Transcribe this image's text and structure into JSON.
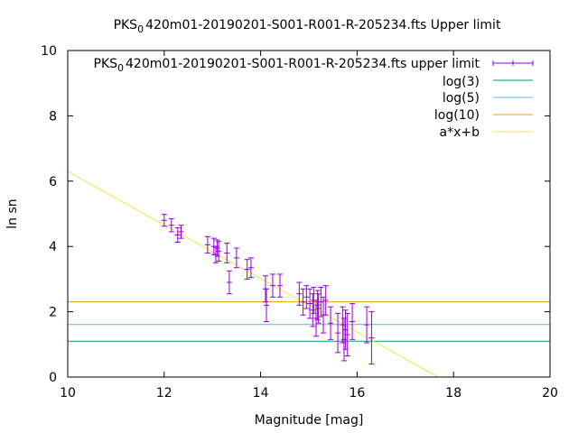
{
  "chart_data": {
    "type": "scatter",
    "title_main": "PKS",
    "title_sub": "0",
    "title_rest": "420m01-20190201-S001-R001-R-205234.fts Upper limit",
    "xlabel": "Magnitude [mag]",
    "ylabel": "ln sn",
    "xlim": [
      10,
      20
    ],
    "ylim": [
      0,
      10
    ],
    "xticks": [
      "10",
      "12",
      "14",
      "16",
      "18",
      "20"
    ],
    "yticks": [
      "0",
      "2",
      "4",
      "6",
      "8",
      "10"
    ],
    "grid": false,
    "legend_position": "top-right",
    "legend": [
      {
        "label_main": "PKS",
        "label_sub": "0",
        "label_rest": "420m01-20190201-S001-R001-R-205234.fts upper limit",
        "color": "#9400d3",
        "style": "errorbar"
      },
      {
        "label": "log(3)",
        "color": "#009e73",
        "style": "line"
      },
      {
        "label": "log(5)",
        "color": "#56b4e9",
        "style": "line"
      },
      {
        "label": "log(10)",
        "color": "#e69f00",
        "style": "line"
      },
      {
        "label": "a*x+b",
        "color": "#f0e442",
        "style": "line"
      }
    ],
    "hlines": [
      {
        "name": "log(3)",
        "value": 1.0986,
        "color": "#009e73"
      },
      {
        "name": "log(5)",
        "value": 1.6094,
        "color": "#56b4e9"
      },
      {
        "name": "log(10)",
        "value": 2.3026,
        "color": "#e69f00"
      }
    ],
    "fit": {
      "name": "a*x+b",
      "slope": -0.82,
      "intercept": 14.5,
      "color": "#f0e442"
    },
    "points_color": "#9400d3",
    "points": [
      {
        "x": 12.0,
        "y": 4.8,
        "err": 0.18
      },
      {
        "x": 12.15,
        "y": 4.65,
        "err": 0.2
      },
      {
        "x": 12.28,
        "y": 4.35,
        "err": 0.22
      },
      {
        "x": 12.35,
        "y": 4.45,
        "err": 0.2
      },
      {
        "x": 12.9,
        "y": 4.05,
        "err": 0.25
      },
      {
        "x": 13.03,
        "y": 4.0,
        "err": 0.25
      },
      {
        "x": 13.07,
        "y": 3.75,
        "err": 0.25
      },
      {
        "x": 13.1,
        "y": 3.95,
        "err": 0.25
      },
      {
        "x": 13.13,
        "y": 3.85,
        "err": 0.3
      },
      {
        "x": 13.3,
        "y": 3.8,
        "err": 0.3
      },
      {
        "x": 13.35,
        "y": 2.9,
        "err": 0.35
      },
      {
        "x": 13.5,
        "y": 3.65,
        "err": 0.3
      },
      {
        "x": 13.72,
        "y": 3.3,
        "err": 0.3
      },
      {
        "x": 13.8,
        "y": 3.35,
        "err": 0.3
      },
      {
        "x": 14.1,
        "y": 2.7,
        "err": 0.4
      },
      {
        "x": 14.12,
        "y": 2.2,
        "err": 0.5
      },
      {
        "x": 14.25,
        "y": 2.8,
        "err": 0.35
      },
      {
        "x": 14.4,
        "y": 2.8,
        "err": 0.35
      },
      {
        "x": 14.8,
        "y": 2.55,
        "err": 0.35
      },
      {
        "x": 14.88,
        "y": 2.3,
        "err": 0.4
      },
      {
        "x": 14.95,
        "y": 2.45,
        "err": 0.35
      },
      {
        "x": 15.02,
        "y": 2.25,
        "err": 0.45
      },
      {
        "x": 15.08,
        "y": 2.05,
        "err": 0.5
      },
      {
        "x": 15.1,
        "y": 2.35,
        "err": 0.4
      },
      {
        "x": 15.15,
        "y": 1.8,
        "err": 0.55
      },
      {
        "x": 15.18,
        "y": 2.2,
        "err": 0.45
      },
      {
        "x": 15.2,
        "y": 2.1,
        "err": 0.45
      },
      {
        "x": 15.25,
        "y": 2.3,
        "err": 0.45
      },
      {
        "x": 15.3,
        "y": 1.9,
        "err": 0.55
      },
      {
        "x": 15.35,
        "y": 2.35,
        "err": 0.45
      },
      {
        "x": 15.45,
        "y": 1.65,
        "err": 0.5
      },
      {
        "x": 15.6,
        "y": 1.35,
        "err": 0.6
      },
      {
        "x": 15.7,
        "y": 1.6,
        "err": 0.55
      },
      {
        "x": 15.73,
        "y": 1.15,
        "err": 0.65
      },
      {
        "x": 15.76,
        "y": 1.45,
        "err": 0.6
      },
      {
        "x": 15.8,
        "y": 1.3,
        "err": 0.65
      },
      {
        "x": 15.9,
        "y": 1.7,
        "err": 0.55
      },
      {
        "x": 16.2,
        "y": 1.6,
        "err": 0.55
      },
      {
        "x": 16.3,
        "y": 1.2,
        "err": 0.8
      }
    ]
  }
}
